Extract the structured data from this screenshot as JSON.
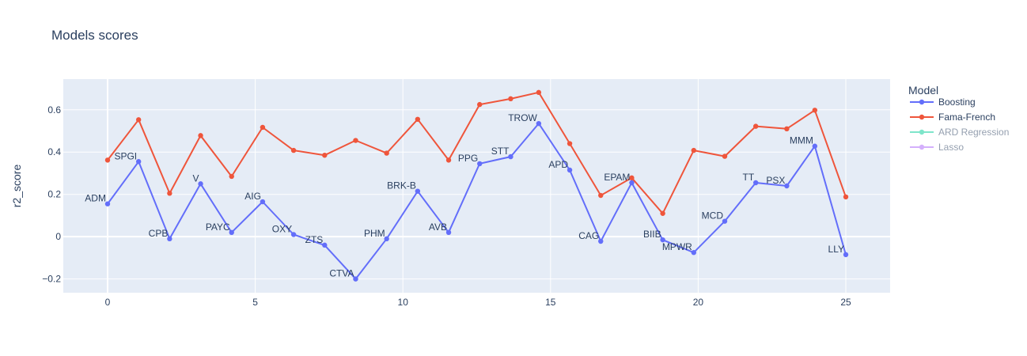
{
  "chart_data": {
    "type": "line",
    "title": "Models scores",
    "xlabel": "",
    "ylabel": "r2_score",
    "xlim": [
      -1.5,
      26.5
    ],
    "ylim": [
      -0.265,
      0.745
    ],
    "x_ticks": [
      0,
      5,
      10,
      15,
      20,
      25
    ],
    "y_ticks": [
      -0.2,
      0,
      0.2,
      0.4,
      0.6
    ],
    "y_tick_labels": [
      "−0.2",
      "0",
      "0.2",
      "0.4",
      "0.6"
    ],
    "grid": true,
    "legend_title": "Model",
    "legend_position": "right",
    "series": [
      {
        "name": "Boosting",
        "color": "#636efa",
        "visible": true,
        "x": [
          0,
          1.05,
          2.1,
          3.15,
          4.2,
          5.25,
          6.3,
          7.35,
          8.4,
          9.45,
          10.5,
          11.55,
          12.6,
          13.65,
          14.6,
          15.65,
          16.7,
          17.75,
          18.8,
          19.85,
          20.9,
          21.95,
          23.0,
          23.95,
          25.0
        ],
        "y": [
          0.155,
          0.355,
          -0.01,
          0.25,
          0.02,
          0.165,
          0.01,
          -0.04,
          -0.2,
          -0.01,
          0.215,
          0.02,
          0.345,
          0.378,
          0.535,
          0.315,
          -0.022,
          0.255,
          -0.015,
          -0.075,
          0.073,
          0.255,
          0.24,
          0.428,
          -0.085
        ],
        "labels": [
          "ADM",
          "SPGI",
          "CPB",
          "V",
          "PAYC",
          "AIG",
          "OXY",
          "ZTS",
          "CTVA",
          "PHM",
          "BRK-B",
          "AVB",
          "PPG",
          "STT",
          "TROW",
          "APD",
          "CAG",
          "EPAM",
          "BIIB",
          "MPWR",
          "MCD",
          "TT",
          "PSX",
          "MMM",
          "LLY"
        ]
      },
      {
        "name": "Fama-French",
        "color": "#ef553b",
        "visible": true,
        "x": [
          0,
          1.05,
          2.1,
          3.15,
          4.2,
          5.25,
          6.3,
          7.35,
          8.4,
          9.45,
          10.5,
          11.55,
          12.6,
          13.65,
          14.6,
          15.65,
          16.7,
          17.75,
          18.8,
          19.85,
          20.9,
          21.95,
          23.0,
          23.95,
          25.0
        ],
        "y": [
          0.362,
          0.553,
          0.205,
          0.478,
          0.285,
          0.517,
          0.408,
          0.385,
          0.455,
          0.395,
          0.555,
          0.362,
          0.625,
          0.652,
          0.682,
          0.44,
          0.195,
          0.278,
          0.11,
          0.408,
          0.38,
          0.522,
          0.51,
          0.598,
          0.188
        ]
      },
      {
        "name": "ARD Regression",
        "color": "#00cc96",
        "visible": false,
        "x": [],
        "y": []
      },
      {
        "name": "Lasso",
        "color": "#ab63fa",
        "visible": false,
        "x": [],
        "y": []
      }
    ]
  }
}
